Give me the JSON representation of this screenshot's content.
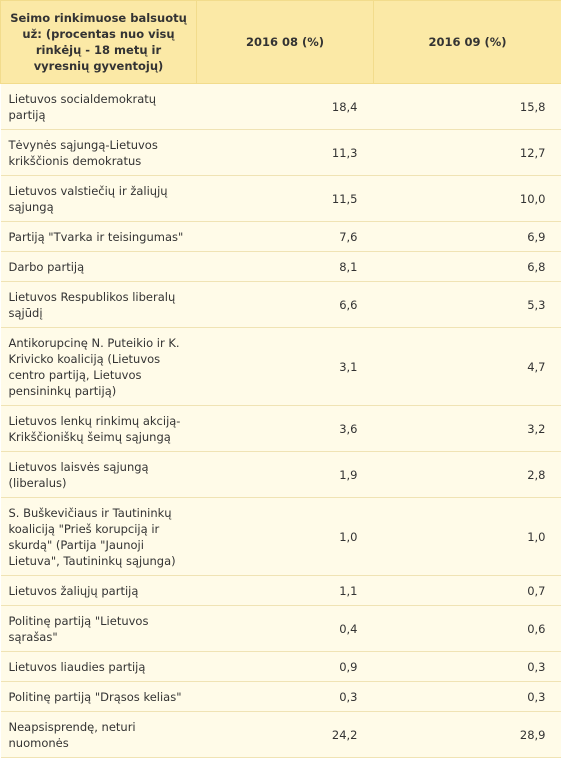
{
  "table": {
    "header": [
      "Seimo rinkimuose balsuotų už: (procentas nuo visų rinkėjų - 18 metų ir vyresnių gyventojų)",
      "2016 08 (%)",
      "2016 09 (%)"
    ],
    "rows": [
      [
        "Lietuvos socialdemokratų partiją",
        "18,4",
        "15,8"
      ],
      [
        "Tėvynės sąjungą-Lietuvos krikščionis demokratus",
        "11,3",
        "12,7"
      ],
      [
        "Lietuvos valstiečių ir žaliųjų sąjungą",
        "11,5",
        "10,0"
      ],
      [
        "Partiją \"Tvarka ir teisingumas\"",
        "7,6",
        "6,9"
      ],
      [
        "Darbo partiją",
        "8,1",
        "6,8"
      ],
      [
        "Lietuvos Respublikos liberalų sąjūdį",
        "6,6",
        "5,3"
      ],
      [
        "Antikorupcinę N. Puteikio ir K. Krivicko koaliciją (Lietuvos centro partiją, Lietuvos pensininkų partiją)",
        "3,1",
        "4,7"
      ],
      [
        "Lietuvos lenkų rinkimų akciją-Krikščioniškų šeimų sąjungą",
        "3,6",
        "3,2"
      ],
      [
        "Lietuvos laisvės sąjungą (liberalus)",
        "1,9",
        "2,8"
      ],
      [
        "S. Buškevičiaus ir Tautininkų koaliciją \"Prieš korupciją ir skurdą\" (Partija \"Jaunoji Lietuva\", Tautininkų sąjunga)",
        "1,0",
        "1,0"
      ],
      [
        "Lietuvos žaliųjų partiją",
        "1,1",
        "0,7"
      ],
      [
        "Politinę partiją \"Lietuvos sąrašas\"",
        "0,4",
        "0,6"
      ],
      [
        "Lietuvos liaudies partiją",
        "0,9",
        "0,3"
      ],
      [
        "Politinę partiją \"Drąsos kelias\"",
        "0,3",
        "0,3"
      ],
      [
        "Neapsisprendę, neturi nuomonės",
        "24,2",
        "28,9"
      ]
    ]
  }
}
